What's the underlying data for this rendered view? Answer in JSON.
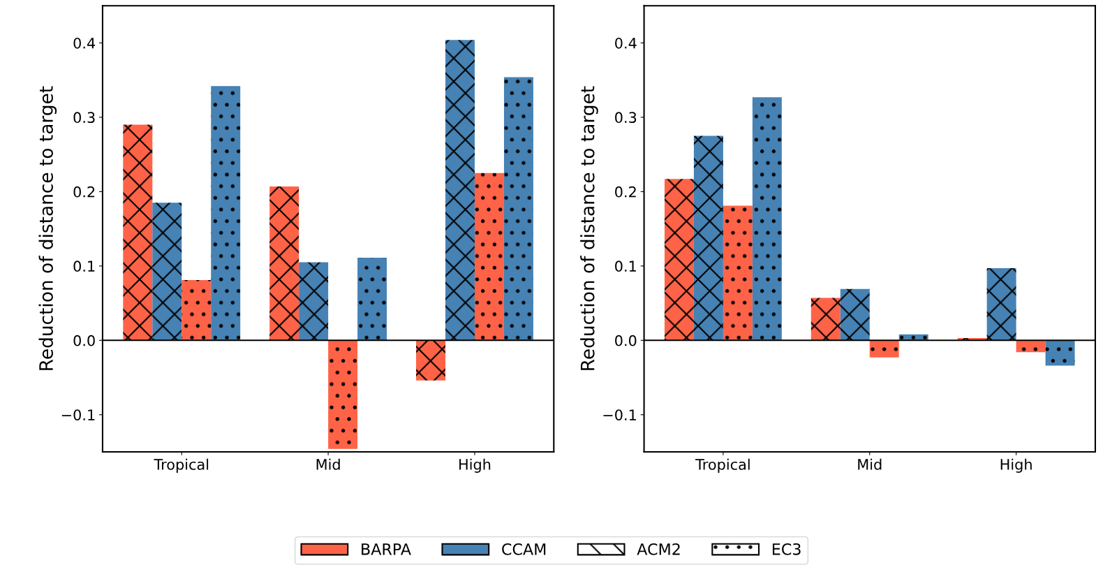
{
  "chart_data": [
    {
      "type": "bar",
      "ylabel": "Reduction of distance to target",
      "categories": [
        "Tropical",
        "Mid",
        "High"
      ],
      "ylim": [
        -0.15,
        0.45
      ],
      "yticks": [
        {
          "value": -0.1,
          "label": "−0.1"
        },
        {
          "value": 0.0,
          "label": "0.0"
        },
        {
          "value": 0.1,
          "label": "0.1"
        },
        {
          "value": 0.2,
          "label": "0.2"
        },
        {
          "value": 0.3,
          "label": "0.3"
        },
        {
          "value": 0.4,
          "label": "0.4"
        }
      ],
      "ref_lines": [
        {
          "axis": "y",
          "value": 0,
          "color": "#000000"
        }
      ],
      "series": [
        {
          "color": "#ff6347",
          "values": [
            0.29,
            0.207,
            -0.054
          ]
        },
        {
          "color": "#4682b4",
          "values": [
            0.185,
            0.105,
            0.404
          ]
        },
        {
          "color": "#ff6347",
          "values": [
            0.081,
            -0.146,
            0.225
          ]
        },
        {
          "color": "#4682b4",
          "values": [
            0.342,
            0.111,
            0.354
          ]
        }
      ]
    },
    {
      "type": "bar",
      "ylabel": "Reduction of distance to target",
      "categories": [
        "Tropical",
        "Mid",
        "High"
      ],
      "ylim": [
        -0.15,
        0.45
      ],
      "yticks": [
        {
          "value": -0.1,
          "label": "−0.1"
        },
        {
          "value": 0.0,
          "label": "0.0"
        },
        {
          "value": 0.1,
          "label": "0.1"
        },
        {
          "value": 0.2,
          "label": "0.2"
        },
        {
          "value": 0.3,
          "label": "0.3"
        },
        {
          "value": 0.4,
          "label": "0.4"
        }
      ],
      "ref_lines": [
        {
          "axis": "y",
          "value": 0,
          "color": "#000000"
        }
      ],
      "annotations": [
        "BARPA",
        "CCAM",
        "ACM2",
        "EC3"
      ],
      "series": [
        {
          "color": "#ff6347",
          "values": [
            0.217,
            0.057,
            0.003
          ]
        },
        {
          "color": "#4682b4",
          "values": [
            0.275,
            0.069,
            0.097
          ]
        },
        {
          "color": "#ff6347",
          "values": [
            0.181,
            -0.023,
            -0.016
          ]
        },
        {
          "color": "#4682b4",
          "values": [
            0.327,
            0.008,
            -0.034
          ]
        }
      ]
    }
  ]
}
